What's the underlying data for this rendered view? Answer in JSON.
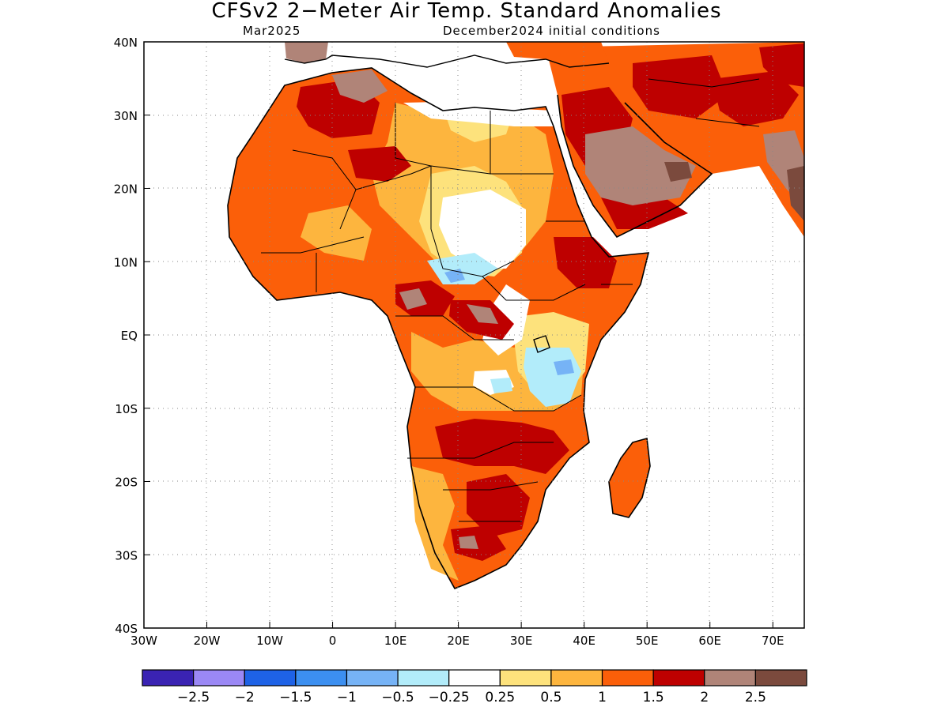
{
  "title": "CFSv2 2−Meter Air Temp. Standard Anomalies",
  "subtitle_left": "Mar2025",
  "subtitle_right": "December2024 initial conditions",
  "map": {
    "x_ticks": [
      "30W",
      "20W",
      "10W",
      "0",
      "10E",
      "20E",
      "30E",
      "40E",
      "50E",
      "60E",
      "70E"
    ],
    "y_ticks": [
      "40N",
      "30N",
      "20N",
      "10N",
      "EQ",
      "10S",
      "20S",
      "30S",
      "40S"
    ],
    "lon_range": [
      -30,
      75
    ],
    "lat_range": [
      -40,
      40
    ],
    "grid": "dotted"
  },
  "colorbar": {
    "colors": [
      "#3a23b3",
      "#9b88f5",
      "#1e62e6",
      "#3c8ff0",
      "#76b3f6",
      "#b2ecfa",
      "#ffffff",
      "#fde27c",
      "#fdb53e",
      "#fb5f09",
      "#be0000",
      "#b08478",
      "#7b4a3d"
    ],
    "labels": [
      "−2.5",
      "−2",
      "−1.5",
      "−1",
      "−0.5",
      "−0.25",
      "0.25",
      "0.5",
      "1",
      "1.5",
      "2",
      "2.5"
    ]
  }
}
